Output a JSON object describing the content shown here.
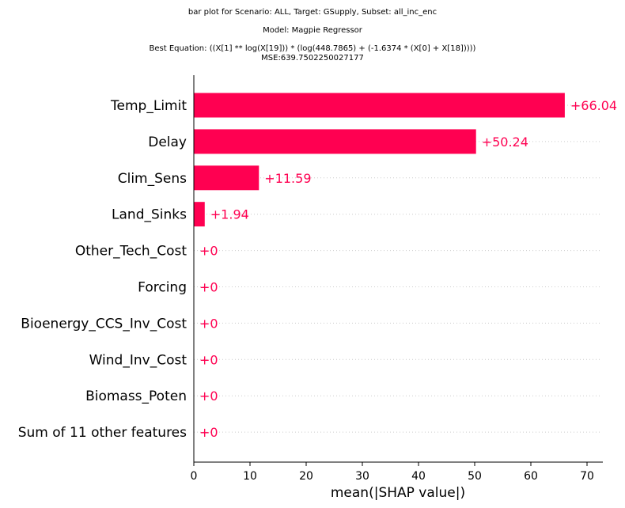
{
  "titles": {
    "line1": "bar plot for Scenario: ALL, Target: GSupply, Subset: all_inc_enc",
    "line2": "Model: Magpie Regressor",
    "line3": "Best Equation: ((X[1] ** log(X[19])) * (log(448.7865) + (-1.6374 * (X[0] + X[18]))))",
    "line4": "MSE:639.7502250027177"
  },
  "chart_data": {
    "type": "bar",
    "orientation": "horizontal",
    "categories": [
      "Temp_Limit",
      "Delay",
      "Clim_Sens",
      "Land_Sinks",
      "Other_Tech_Cost",
      "Forcing",
      "Bioenergy_CCS_Inv_Cost",
      "Wind_Inv_Cost",
      "Biomass_Poten",
      "Sum of 11 other features"
    ],
    "values": [
      66.04,
      50.24,
      11.59,
      1.94,
      0,
      0,
      0,
      0,
      0,
      0
    ],
    "value_labels": [
      "+66.04",
      "+50.24",
      "+11.59",
      "+1.94",
      "+0",
      "+0",
      "+0",
      "+0",
      "+0",
      "+0"
    ],
    "xlabel": "mean(|SHAP value|)",
    "xlim": [
      0,
      73
    ],
    "xticks": [
      0,
      10,
      20,
      30,
      40,
      50,
      60,
      70
    ],
    "bar_color": "#ff0051",
    "grid": "dotted row guides"
  }
}
